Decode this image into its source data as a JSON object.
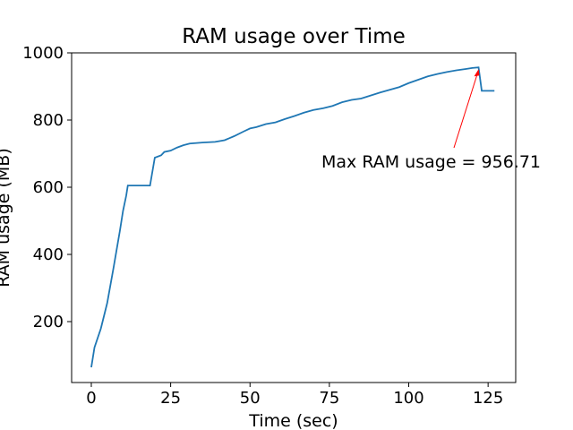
{
  "chart_data": {
    "type": "line",
    "title": "RAM usage over Time",
    "xlabel": "Time (sec)",
    "ylabel": "RAM usage (MB)",
    "x": [
      0,
      1,
      3,
      5,
      7,
      9,
      10,
      11,
      11.5,
      18.5,
      20,
      22,
      23,
      25,
      27,
      29,
      31,
      35,
      39,
      42,
      45,
      48,
      50,
      52,
      55,
      58,
      61,
      64,
      67,
      70,
      73,
      76,
      79,
      82,
      85,
      88,
      91,
      94,
      97,
      100,
      103,
      106,
      109,
      112,
      115,
      118,
      120,
      122,
      123,
      127
    ],
    "series": [
      {
        "color": "#1f77b4",
        "values": [
          64,
          123,
          179,
          255,
          360,
          470,
          530,
          575,
          605,
          605,
          688,
          695,
          705,
          709,
          718,
          725,
          730,
          733,
          735,
          740,
          752,
          766,
          775,
          779,
          788,
          793,
          803,
          812,
          822,
          830,
          835,
          842,
          853,
          860,
          864,
          873,
          882,
          890,
          898,
          910,
          920,
          930,
          937,
          943,
          948,
          952,
          955,
          956.71,
          887,
          887
        ]
      }
    ],
    "xlim": [
      -6.2,
      133.7
    ],
    "ylim": [
      18.7,
      1000
    ],
    "xticks": [
      0,
      25,
      50,
      75,
      100,
      125
    ],
    "yticks": [
      200,
      400,
      600,
      800,
      1000
    ],
    "annotation": {
      "text": "Max RAM usage = 956.71",
      "xy": [
        122,
        956.71
      ],
      "color": "red"
    }
  }
}
